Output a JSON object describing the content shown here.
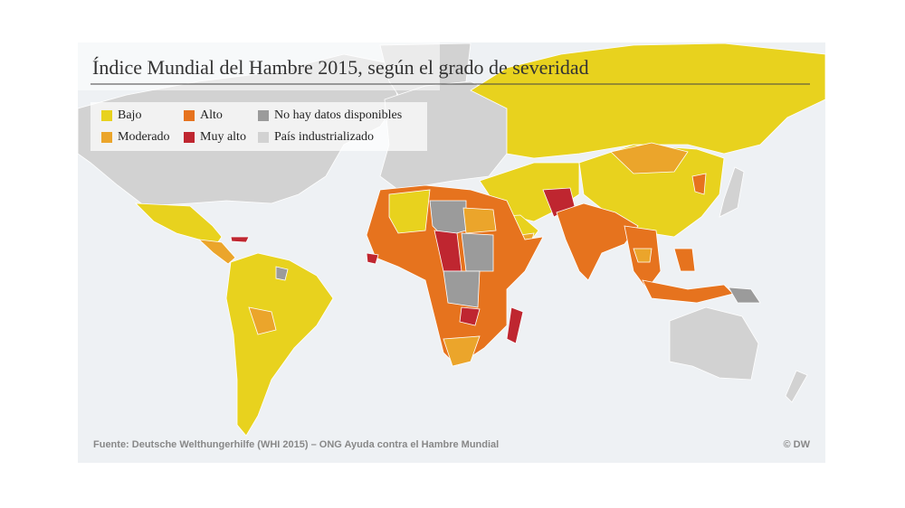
{
  "header": {
    "title": "Índice Mundial del Hambre 2015, según el grado de severidad"
  },
  "legend": {
    "items": [
      {
        "label": "Bajo",
        "color": "#e8d21e"
      },
      {
        "label": "Alto",
        "color": "#e6731e"
      },
      {
        "label": "No hay datos disponibles",
        "color": "#9b9b9b"
      },
      {
        "label": "Moderado",
        "color": "#eba52b"
      },
      {
        "label": "Muy alto",
        "color": "#bf2630"
      },
      {
        "label": "País industrializado",
        "color": "#d2d2d2"
      }
    ]
  },
  "footer": {
    "source": "Fuente: Deutsche Welthungerhilfe (WHI 2015) – ONG Ayuda contra el Hambre Mundial",
    "copyright": "© DW"
  }
}
